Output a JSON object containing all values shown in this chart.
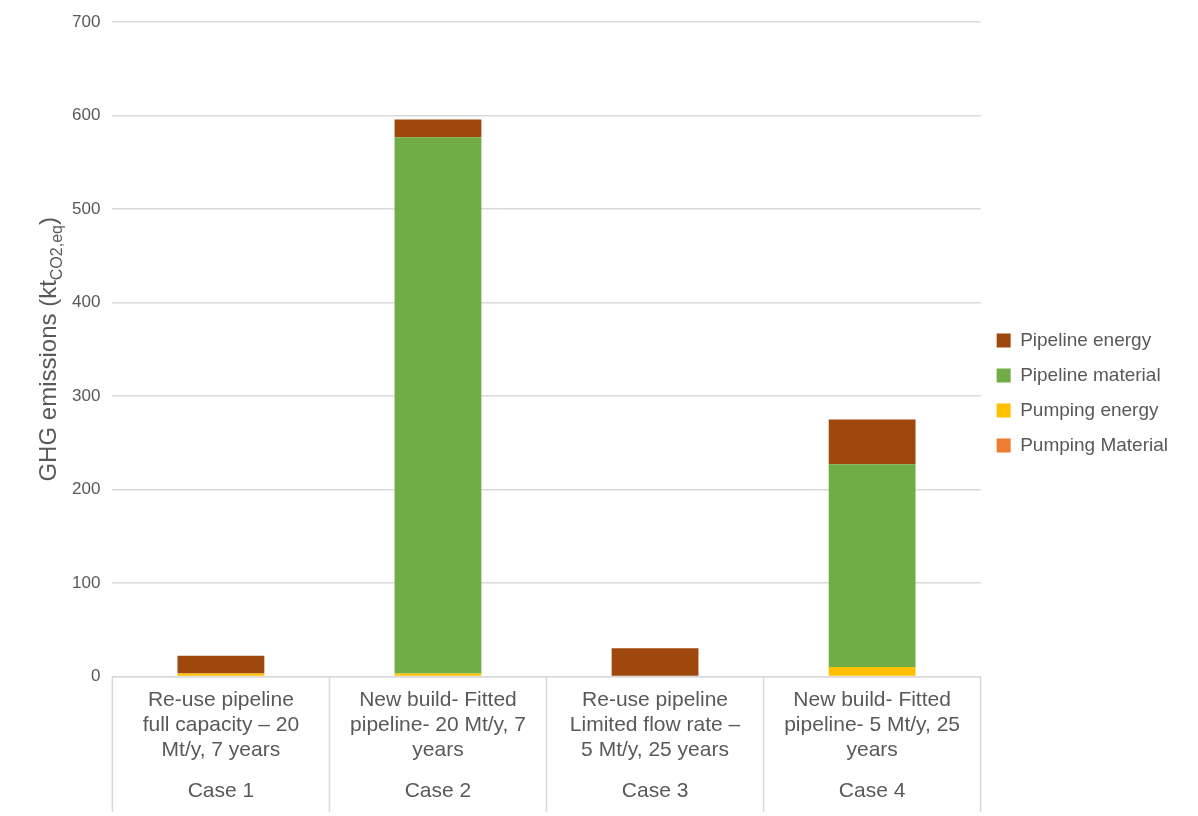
{
  "chart_data": {
    "type": "bar",
    "stacked": true,
    "ylabel": "GHG emissions (kt$_{CO2,eq}$)",
    "categories": [
      "Re-use pipeline full capacity – 20 Mt/y, 7 years",
      "New build- Fitted pipeline- 20 Mt/y, 7 years",
      "Re-use pipeline Limited flow rate – 5 Mt/y, 25 years",
      "New build- Fitted pipeline- 5 Mt/y, 25 years"
    ],
    "series": [
      {
        "name": "Pumping Material",
        "color": "#ed7d31",
        "values": [
          0,
          0,
          0,
          0
        ]
      },
      {
        "name": "Pumping energy",
        "color": "#ffc000",
        "values": [
          3,
          3,
          0,
          10
        ]
      },
      {
        "name": "Pipeline material",
        "color": "#70ad47",
        "values": [
          0,
          574,
          0,
          217
        ]
      },
      {
        "name": "Pipeline energy",
        "color": "#9e480e",
        "values": [
          19,
          19,
          30,
          48
        ]
      }
    ],
    "ylim": [
      0,
      700
    ],
    "yticks": [
      0,
      100,
      200,
      300,
      400,
      500,
      600,
      700
    ],
    "grid": "y",
    "legend": "right",
    "annotations": [
      "Case 1",
      "Case 2",
      "Case 3",
      "Case 4"
    ]
  }
}
